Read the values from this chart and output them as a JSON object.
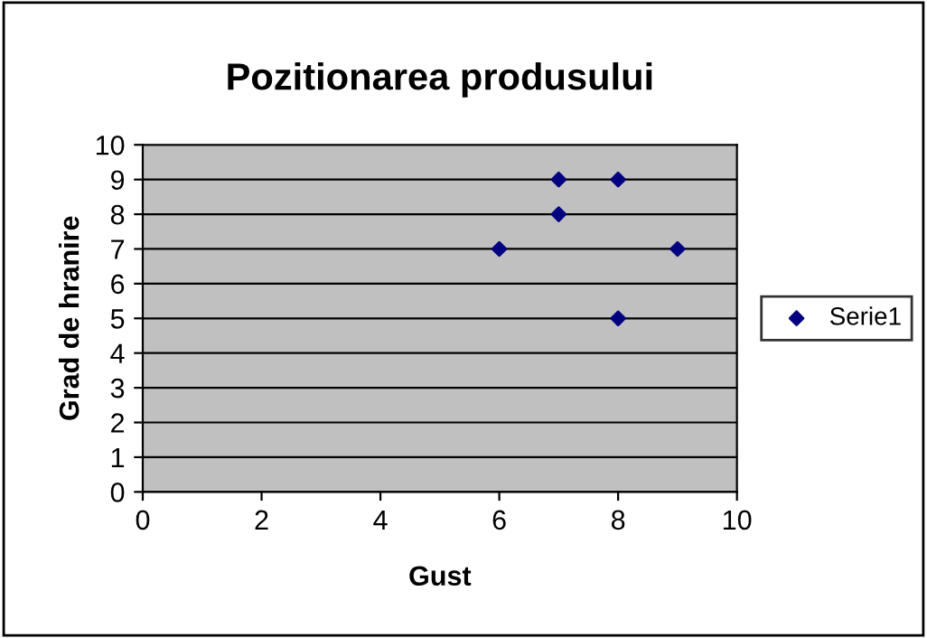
{
  "chart_data": {
    "type": "scatter",
    "title": "Pozitionarea produsului",
    "xlabel": "Gust",
    "ylabel": "Grad de hranire",
    "x": [
      6,
      7,
      7,
      8,
      8,
      9
    ],
    "series": [
      {
        "name": "Serie1",
        "color": "#000080",
        "values": [
          7,
          9,
          8,
          9,
          5,
          7
        ]
      }
    ],
    "xlim": [
      0,
      10
    ],
    "xticks": [
      0,
      2,
      4,
      6,
      8,
      10
    ],
    "ylim": [
      0,
      10
    ],
    "yticks": [
      0,
      1,
      2,
      3,
      4,
      5,
      6,
      7,
      8,
      9,
      10
    ],
    "grid": "y",
    "legend": "right",
    "marker": "diamond"
  }
}
